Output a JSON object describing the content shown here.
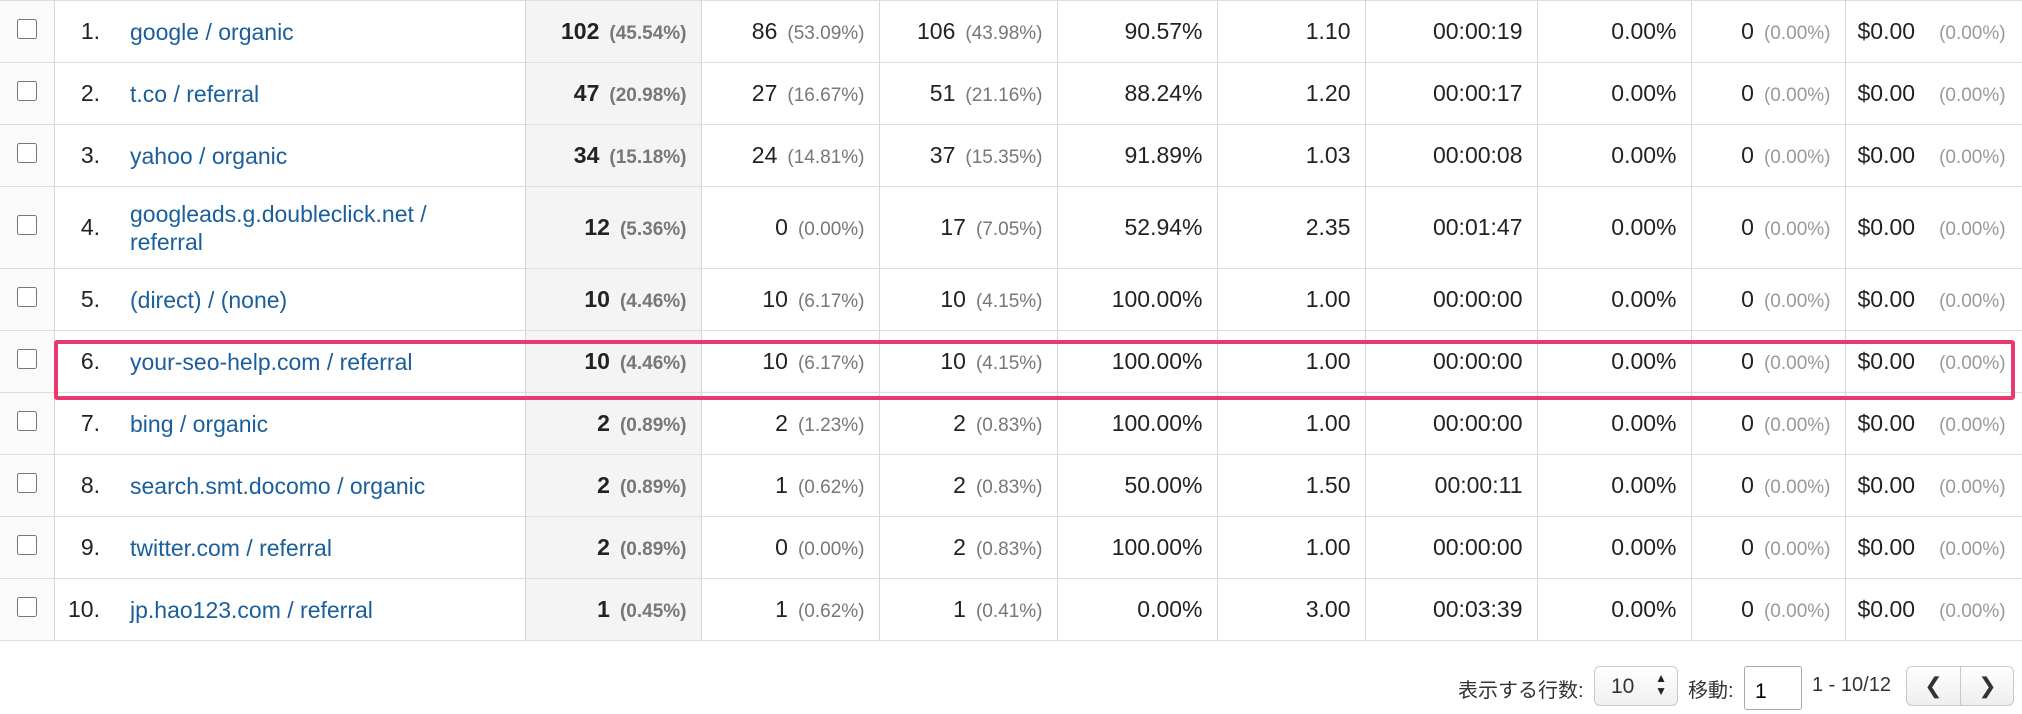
{
  "rows": [
    {
      "rank": "1.",
      "source": "google / organic",
      "sessions": "102",
      "sessions_pct": "(45.54%)",
      "users": "86",
      "users_pct": "(53.09%)",
      "pageviews": "106",
      "pageviews_pct": "(43.98%)",
      "bounce_rate": "90.57%",
      "pages_per_session": "1.10",
      "avg_duration": "00:00:19",
      "conv_rate": "0.00%",
      "goals": "0",
      "goals_pct": "(0.00%)",
      "value": "$0.00",
      "value_pct": "(0.00%)"
    },
    {
      "rank": "2.",
      "source": "t.co / referral",
      "sessions": "47",
      "sessions_pct": "(20.98%)",
      "users": "27",
      "users_pct": "(16.67%)",
      "pageviews": "51",
      "pageviews_pct": "(21.16%)",
      "bounce_rate": "88.24%",
      "pages_per_session": "1.20",
      "avg_duration": "00:00:17",
      "conv_rate": "0.00%",
      "goals": "0",
      "goals_pct": "(0.00%)",
      "value": "$0.00",
      "value_pct": "(0.00%)"
    },
    {
      "rank": "3.",
      "source": "yahoo / organic",
      "sessions": "34",
      "sessions_pct": "(15.18%)",
      "users": "24",
      "users_pct": "(14.81%)",
      "pageviews": "37",
      "pageviews_pct": "(15.35%)",
      "bounce_rate": "91.89%",
      "pages_per_session": "1.03",
      "avg_duration": "00:00:08",
      "conv_rate": "0.00%",
      "goals": "0",
      "goals_pct": "(0.00%)",
      "value": "$0.00",
      "value_pct": "(0.00%)"
    },
    {
      "rank": "4.",
      "source": "googleads.g.doubleclick.net / referral",
      "sessions": "12",
      "sessions_pct": "(5.36%)",
      "users": "0",
      "users_pct": "(0.00%)",
      "pageviews": "17",
      "pageviews_pct": "(7.05%)",
      "bounce_rate": "52.94%",
      "pages_per_session": "2.35",
      "avg_duration": "00:01:47",
      "conv_rate": "0.00%",
      "goals": "0",
      "goals_pct": "(0.00%)",
      "value": "$0.00",
      "value_pct": "(0.00%)"
    },
    {
      "rank": "5.",
      "source": "(direct) / (none)",
      "sessions": "10",
      "sessions_pct": "(4.46%)",
      "users": "10",
      "users_pct": "(6.17%)",
      "pageviews": "10",
      "pageviews_pct": "(4.15%)",
      "bounce_rate": "100.00%",
      "pages_per_session": "1.00",
      "avg_duration": "00:00:00",
      "conv_rate": "0.00%",
      "goals": "0",
      "goals_pct": "(0.00%)",
      "value": "$0.00",
      "value_pct": "(0.00%)"
    },
    {
      "rank": "6.",
      "source": "your-seo-help.com / referral",
      "sessions": "10",
      "sessions_pct": "(4.46%)",
      "users": "10",
      "users_pct": "(6.17%)",
      "pageviews": "10",
      "pageviews_pct": "(4.15%)",
      "bounce_rate": "100.00%",
      "pages_per_session": "1.00",
      "avg_duration": "00:00:00",
      "conv_rate": "0.00%",
      "goals": "0",
      "goals_pct": "(0.00%)",
      "value": "$0.00",
      "value_pct": "(0.00%)"
    },
    {
      "rank": "7.",
      "source": "bing / organic",
      "sessions": "2",
      "sessions_pct": "(0.89%)",
      "users": "2",
      "users_pct": "(1.23%)",
      "pageviews": "2",
      "pageviews_pct": "(0.83%)",
      "bounce_rate": "100.00%",
      "pages_per_session": "1.00",
      "avg_duration": "00:00:00",
      "conv_rate": "0.00%",
      "goals": "0",
      "goals_pct": "(0.00%)",
      "value": "$0.00",
      "value_pct": "(0.00%)"
    },
    {
      "rank": "8.",
      "source": "search.smt.docomo / organic",
      "sessions": "2",
      "sessions_pct": "(0.89%)",
      "users": "1",
      "users_pct": "(0.62%)",
      "pageviews": "2",
      "pageviews_pct": "(0.83%)",
      "bounce_rate": "50.00%",
      "pages_per_session": "1.50",
      "avg_duration": "00:00:11",
      "conv_rate": "0.00%",
      "goals": "0",
      "goals_pct": "(0.00%)",
      "value": "$0.00",
      "value_pct": "(0.00%)"
    },
    {
      "rank": "9.",
      "source": "twitter.com / referral",
      "sessions": "2",
      "sessions_pct": "(0.89%)",
      "users": "0",
      "users_pct": "(0.00%)",
      "pageviews": "2",
      "pageviews_pct": "(0.83%)",
      "bounce_rate": "100.00%",
      "pages_per_session": "1.00",
      "avg_duration": "00:00:00",
      "conv_rate": "0.00%",
      "goals": "0",
      "goals_pct": "(0.00%)",
      "value": "$0.00",
      "value_pct": "(0.00%)"
    },
    {
      "rank": "10.",
      "source": "jp.hao123.com / referral",
      "sessions": "1",
      "sessions_pct": "(0.45%)",
      "users": "1",
      "users_pct": "(0.62%)",
      "pageviews": "1",
      "pageviews_pct": "(0.41%)",
      "bounce_rate": "0.00%",
      "pages_per_session": "3.00",
      "avg_duration": "00:03:39",
      "conv_rate": "0.00%",
      "goals": "0",
      "goals_pct": "(0.00%)",
      "value": "$0.00",
      "value_pct": "(0.00%)"
    }
  ],
  "highlight_color": "#e93a6f",
  "link_color": "#1a5e9c",
  "footer": {
    "rows_label": "表示する行数:",
    "rows_value": "10",
    "goto_label": "移動:",
    "goto_value": "1",
    "range": "1 - 10/12",
    "prev_icon": "chevron-left-icon",
    "next_icon": "chevron-right-icon"
  }
}
